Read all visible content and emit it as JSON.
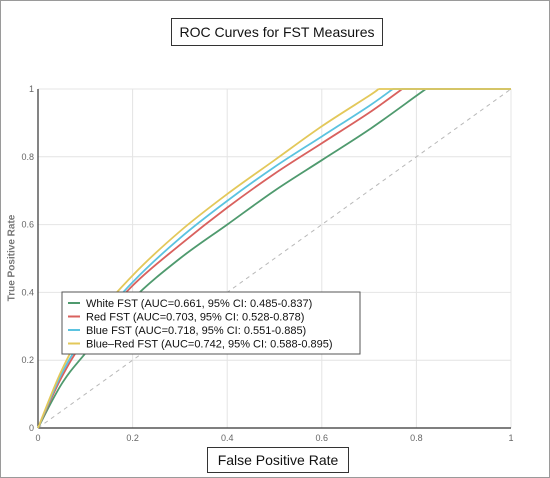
{
  "chart_data": {
    "type": "line",
    "title": "ROC Curves for FST Measures",
    "xlabel": "False Positive Rate",
    "ylabel": "True Positive Rate",
    "xlim": [
      0,
      1
    ],
    "ylim": [
      0,
      1
    ],
    "x_ticks": [
      "0",
      "0.2",
      "0.4",
      "0.6",
      "0.8",
      "1"
    ],
    "y_ticks": [
      "0",
      "0.2",
      "0.4",
      "0.6",
      "0.8",
      "1"
    ],
    "grid": true,
    "legend_position": "center-left",
    "diagonal": {
      "style": "dashed",
      "color": "#b8b8b8"
    },
    "series": [
      {
        "name": "White FST (AUC=0.661, 95% CI: 0.485-0.837)",
        "color": "#4f9a6e",
        "x": [
          0,
          0.05,
          0.1,
          0.2,
          0.3,
          0.4,
          0.5,
          0.6,
          0.7,
          0.8,
          0.82,
          1
        ],
        "y": [
          0,
          0.13,
          0.22,
          0.38,
          0.5,
          0.6,
          0.7,
          0.79,
          0.88,
          0.98,
          1,
          1
        ]
      },
      {
        "name": "Red FST (AUC=0.703, 95% CI: 0.528-0.878)",
        "color": "#d9615e",
        "x": [
          0,
          0.05,
          0.1,
          0.2,
          0.3,
          0.4,
          0.5,
          0.6,
          0.7,
          0.77,
          1
        ],
        "y": [
          0,
          0.15,
          0.26,
          0.42,
          0.54,
          0.65,
          0.75,
          0.84,
          0.93,
          1,
          1
        ]
      },
      {
        "name": "Blue FST (AUC=0.718, 95% CI: 0.551-0.885)",
        "color": "#5bc3e0",
        "x": [
          0,
          0.05,
          0.1,
          0.2,
          0.3,
          0.4,
          0.5,
          0.6,
          0.7,
          0.75,
          1
        ],
        "y": [
          0,
          0.16,
          0.27,
          0.43,
          0.56,
          0.67,
          0.77,
          0.86,
          0.95,
          1,
          1
        ]
      },
      {
        "name": "Blue–Red FST (AUC=0.742, 95% CI: 0.588-0.895)",
        "color": "#e3c85a",
        "x": [
          0,
          0.05,
          0.1,
          0.2,
          0.3,
          0.4,
          0.5,
          0.6,
          0.7,
          0.72,
          1
        ],
        "y": [
          0,
          0.17,
          0.29,
          0.45,
          0.58,
          0.69,
          0.79,
          0.89,
          0.98,
          1,
          1
        ]
      }
    ]
  }
}
